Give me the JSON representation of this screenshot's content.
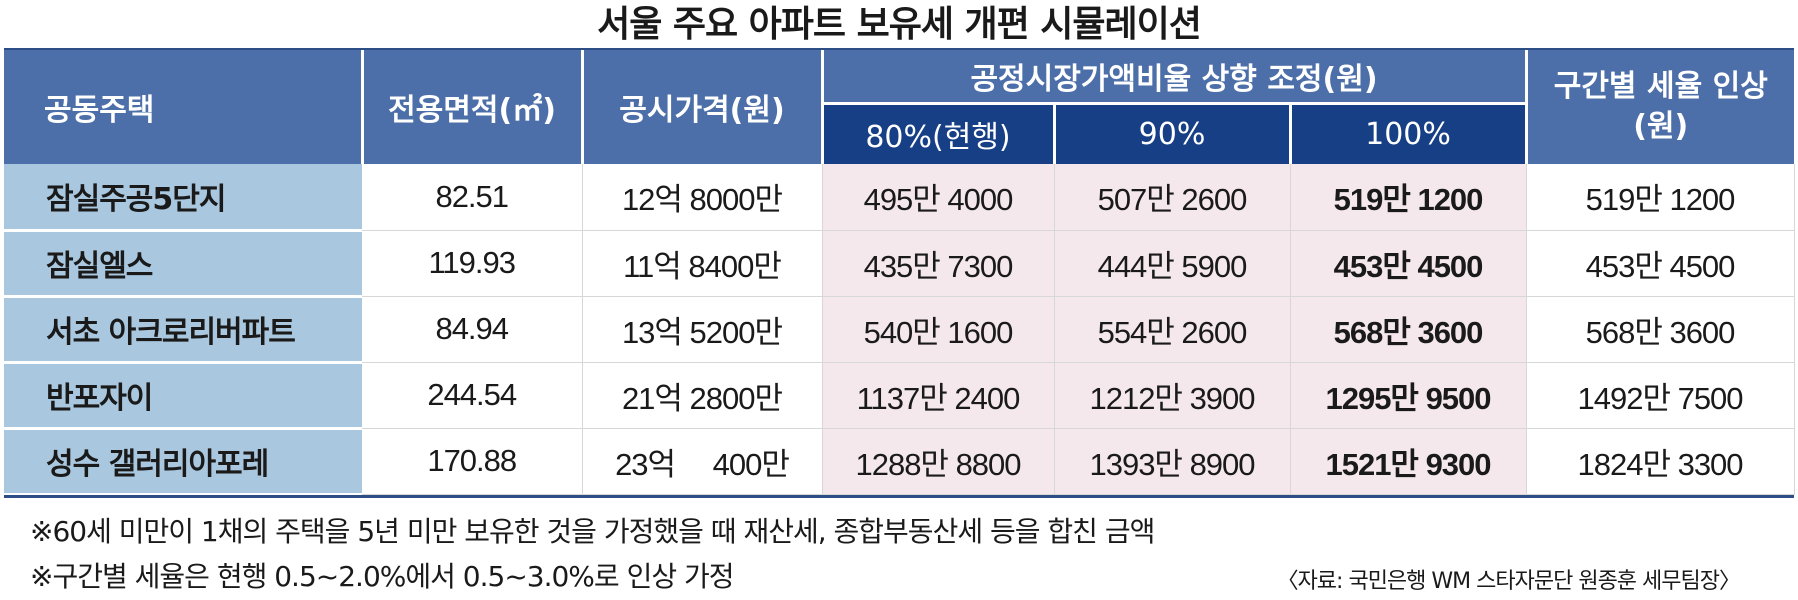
{
  "title": "서울 주요 아파트 보유세 개편 시뮬레이션",
  "headers": {
    "house": "공동주택",
    "area": "전용면적(㎡)",
    "price": "공시가격(원)",
    "ratio_group": "공정시장가액비율 상향 조정(원)",
    "ratio_80": "80%(현행)",
    "ratio_90": "90%",
    "ratio_100": "100%",
    "bracket_line1": "구간별 세율 인상",
    "bracket_line2": "(원)"
  },
  "rows": [
    {
      "name": "잠실주공5단지",
      "area": "82.51",
      "price": "12억 8000만",
      "r80": "495만 4000",
      "r90": "507만 2600",
      "r100": "519만 1200",
      "bracket": "519만 1200"
    },
    {
      "name": "잠실엘스",
      "area": "119.93",
      "price": "11억 8400만",
      "r80": "435만 7300",
      "r90": "444만 5900",
      "r100": "453만 4500",
      "bracket": "453만 4500"
    },
    {
      "name": "서초 아크로리버파트",
      "area": "84.94",
      "price": "13억 5200만",
      "r80": "540만 1600",
      "r90": "554만 2600",
      "r100": "568만 3600",
      "bracket": "568만 3600"
    },
    {
      "name": "반포자이",
      "area": "244.54",
      "price": "21억 2800만",
      "r80": "1137만 2400",
      "r90": "1212만 3900",
      "r100": "1295만 9500",
      "bracket": "1492만 7500"
    },
    {
      "name": "성수 갤러리아포레",
      "area": "170.88",
      "price": "23억 　400만",
      "r80": "1288만 8800",
      "r90": "1393만 8900",
      "r100": "1521만 9300",
      "bracket": "1824만 3300"
    }
  ],
  "notes": [
    "※60세 미만이 1채의 주택을 5년 미만 보유한 것을 가정했을 때 재산세, 종합부동산세 등을 합친 금액",
    "※구간별 세율은 현행 0.5~2.0%에서 0.5~3.0%로 인상 가정"
  ],
  "source": "〈자료: 국민은행 WM 스타자문단 원종훈 세무팀장〉",
  "colors": {
    "header": "#4d6fa9",
    "subheader": "#173f86",
    "name_col": "#a9c7de",
    "highlight": "#f4e8ec"
  }
}
